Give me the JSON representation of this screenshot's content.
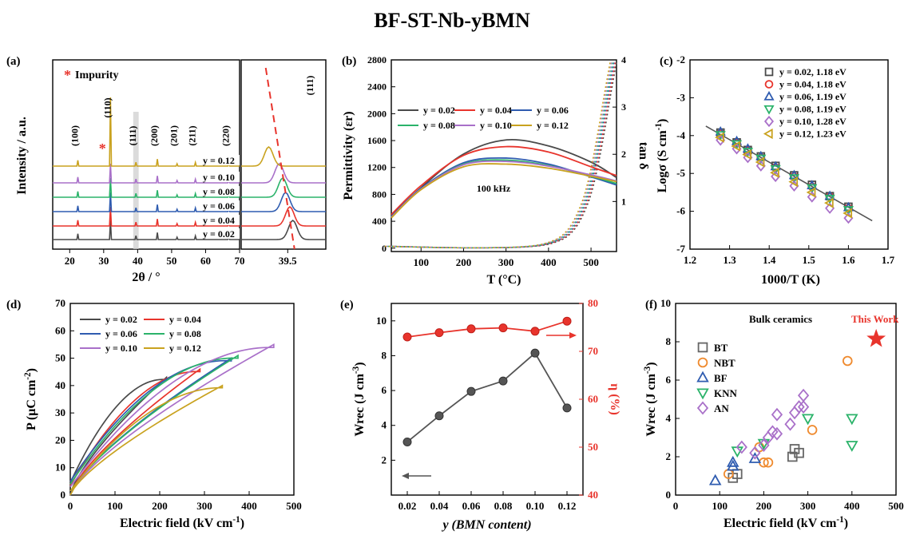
{
  "figure_title": "BF-ST-Nb-yBMN",
  "colors": {
    "y002": "#4a4a4a",
    "y004": "#e8342c",
    "y006": "#2f5cb0",
    "y008": "#2bb36a",
    "y010": "#a970c9",
    "y012": "#c9a21f",
    "bt": "#666666",
    "nbt": "#ef8a2e",
    "bf": "#2f5cb0",
    "knn": "#2bb36a",
    "an": "#a970c9",
    "star": "#e8342c"
  },
  "chart_data": [
    {
      "id": "a",
      "panel_label": "(a)",
      "type": "line",
      "xlabel": "2θ / °",
      "ylabel": "Intensity / a.u.",
      "xlim": [
        15,
        70
      ],
      "xticks": [
        20,
        30,
        40,
        50,
        60,
        70
      ],
      "annotations": {
        "impurity": "Impurity",
        "star": "*"
      },
      "peak_labels": [
        {
          "label": "(100)",
          "x": 22.4
        },
        {
          "label": "(110)",
          "x": 32.0
        },
        {
          "label": "(111)",
          "x": 39.5
        },
        {
          "label": "(200)",
          "x": 45.8
        },
        {
          "label": "(201)",
          "x": 51.6
        },
        {
          "label": "(211)",
          "x": 57.0
        },
        {
          "label": "(220)",
          "x": 66.8
        }
      ],
      "impurity_x": 29.5,
      "highlight_range": [
        38.7,
        40.3
      ],
      "peaks": [
        {
          "x": 22.4,
          "h": 0.45
        },
        {
          "x": 32.0,
          "h": 1.0
        },
        {
          "x": 39.5,
          "h": 0.3
        },
        {
          "x": 45.8,
          "h": 0.55
        },
        {
          "x": 51.6,
          "h": 0.18
        },
        {
          "x": 57.0,
          "h": 0.28
        },
        {
          "x": 66.8,
          "h": 0.22
        }
      ],
      "series": [
        {
          "name": "y = 0.02",
          "color_key": "y002"
        },
        {
          "name": "y = 0.04",
          "color_key": "y004"
        },
        {
          "name": "y = 0.06",
          "color_key": "y006"
        },
        {
          "name": "y = 0.08",
          "color_key": "y008"
        },
        {
          "name": "y = 0.10",
          "color_key": "y010"
        },
        {
          "name": "y = 0.12",
          "color_key": "y012"
        }
      ]
    },
    {
      "id": "a_inset",
      "type": "line",
      "label": "(111)",
      "xtick": "39.5",
      "xlim": [
        38.4,
        40.4
      ],
      "peak_positions": [
        39.62,
        39.55,
        39.45,
        39.38,
        39.3,
        39.05
      ]
    },
    {
      "id": "b",
      "panel_label": "(b)",
      "type": "line",
      "xlabel": "T (°C)",
      "ylabel": "Permittivity (εr)",
      "ylabel2": "tan δ",
      "annotation": "100 kHz",
      "xlim": [
        30,
        560
      ],
      "ylim": [
        -50,
        2800
      ],
      "y2lim": [
        -0.06,
        4
      ],
      "xticks": [
        100,
        200,
        300,
        400,
        500
      ],
      "yticks": [
        0,
        400,
        800,
        1200,
        1600,
        2000,
        2400,
        2800
      ],
      "y2ticks": [
        1,
        2,
        3,
        4
      ],
      "series": [
        {
          "name": "y = 0.02",
          "color_key": "y002",
          "x": [
            30,
            100,
            200,
            300,
            400,
            500,
            560
          ],
          "y": [
            480,
            900,
            1400,
            1610,
            1520,
            1280,
            1050
          ]
        },
        {
          "name": "y = 0.04",
          "color_key": "y004",
          "x": [
            30,
            100,
            200,
            300,
            400,
            500,
            560
          ],
          "y": [
            500,
            930,
            1380,
            1510,
            1430,
            1210,
            1080
          ]
        },
        {
          "name": "y = 0.06",
          "color_key": "y006",
          "x": [
            30,
            100,
            200,
            300,
            400,
            500,
            560
          ],
          "y": [
            470,
            890,
            1270,
            1340,
            1250,
            1060,
            940
          ]
        },
        {
          "name": "y = 0.08",
          "color_key": "y008",
          "x": [
            30,
            100,
            200,
            300,
            400,
            500,
            560
          ],
          "y": [
            460,
            880,
            1250,
            1310,
            1230,
            1070,
            960
          ]
        },
        {
          "name": "y = 0.10",
          "color_key": "y010",
          "x": [
            30,
            100,
            200,
            300,
            400,
            500,
            560
          ],
          "y": [
            460,
            880,
            1240,
            1290,
            1220,
            1090,
            1000
          ]
        },
        {
          "name": "y = 0.12",
          "color_key": "y012",
          "x": [
            30,
            100,
            200,
            300,
            400,
            500,
            560
          ],
          "y": [
            450,
            870,
            1210,
            1250,
            1190,
            1070,
            990
          ]
        }
      ],
      "tan_series": {
        "x": [
          30,
          200,
          350,
          420,
          460,
          490,
          510,
          530,
          545,
          560
        ],
        "y": [
          0.05,
          0.02,
          0.04,
          0.15,
          0.4,
          0.9,
          1.5,
          2.4,
          3.2,
          3.95
        ]
      }
    },
    {
      "id": "c",
      "panel_label": "(c)",
      "type": "scatter",
      "xlabel": "1000/T (K)",
      "ylabel": "Logσ (S cm⁻¹)",
      "xlim": [
        1.2,
        1.7
      ],
      "ylim": [
        -7,
        -2
      ],
      "xticks": [
        1.2,
        1.3,
        1.4,
        1.5,
        1.6,
        1.7
      ],
      "yticks": [
        -7,
        -6,
        -5,
        -4,
        -3,
        -2
      ],
      "fit_line": {
        "x": [
          1.24,
          1.66
        ],
        "y": [
          -3.75,
          -6.25
        ]
      },
      "series": [
        {
          "name": "y = 0.02, 1.18 eV",
          "marker": "square",
          "color_key": "y002",
          "x": [
            1.277,
            1.318,
            1.346,
            1.379,
            1.416,
            1.463,
            1.508,
            1.553,
            1.6
          ],
          "y": [
            -3.92,
            -4.18,
            -4.38,
            -4.55,
            -4.8,
            -5.05,
            -5.3,
            -5.6,
            -5.88
          ]
        },
        {
          "name": "y = 0.04, 1.18 eV",
          "marker": "circle",
          "color_key": "y004",
          "x": [
            1.277,
            1.318,
            1.346,
            1.379,
            1.416,
            1.463,
            1.508,
            1.553,
            1.6
          ],
          "y": [
            -3.95,
            -4.2,
            -4.4,
            -4.58,
            -4.85,
            -5.08,
            -5.35,
            -5.62,
            -5.92
          ]
        },
        {
          "name": "y = 0.06, 1.19 eV",
          "marker": "triangle-up",
          "color_key": "y006",
          "x": [
            1.277,
            1.318,
            1.346,
            1.379,
            1.416,
            1.463,
            1.508,
            1.553,
            1.6
          ],
          "y": [
            -3.9,
            -4.15,
            -4.35,
            -4.55,
            -4.82,
            -5.05,
            -5.32,
            -5.6,
            -5.9
          ]
        },
        {
          "name": "y = 0.08, 1.19 eV",
          "marker": "triangle-down",
          "color_key": "y008",
          "x": [
            1.277,
            1.318,
            1.346,
            1.379,
            1.416,
            1.463,
            1.508,
            1.553,
            1.6
          ],
          "y": [
            -3.98,
            -4.22,
            -4.42,
            -4.6,
            -4.88,
            -5.12,
            -5.38,
            -5.66,
            -5.96
          ]
        },
        {
          "name": "y = 0.10, 1.28 eV",
          "marker": "diamond",
          "color_key": "y010",
          "x": [
            1.277,
            1.318,
            1.346,
            1.379,
            1.416,
            1.463,
            1.508,
            1.553,
            1.6
          ],
          "y": [
            -4.12,
            -4.35,
            -4.58,
            -4.8,
            -5.08,
            -5.33,
            -5.62,
            -5.92,
            -6.18
          ]
        },
        {
          "name": "y = 0.12, 1.23 eV",
          "marker": "triangle-left",
          "color_key": "y012",
          "x": [
            1.277,
            1.318,
            1.346,
            1.379,
            1.416,
            1.463,
            1.508,
            1.553,
            1.6
          ],
          "y": [
            -4.05,
            -4.28,
            -4.5,
            -4.7,
            -4.98,
            -5.22,
            -5.5,
            -5.78,
            -6.05
          ]
        }
      ]
    },
    {
      "id": "d",
      "panel_label": "(d)",
      "type": "line",
      "xlabel": "Electric field (kV cm⁻¹)",
      "ylabel": "P (μC cm⁻²)",
      "xlim": [
        0,
        500
      ],
      "ylim": [
        0,
        70
      ],
      "xticks": [
        0,
        100,
        200,
        300,
        400,
        500
      ],
      "yticks": [
        0,
        10,
        20,
        30,
        40,
        50,
        60,
        70
      ],
      "series": [
        {
          "name": "y = 0.02",
          "color_key": "y002",
          "Emax": 215,
          "Pmax": 43,
          "Pr": 4.5
        },
        {
          "name": "y = 0.04",
          "color_key": "y004",
          "Emax": 290,
          "Pmax": 46,
          "Pr": 3.5
        },
        {
          "name": "y = 0.06",
          "color_key": "y006",
          "Emax": 360,
          "Pmax": 50,
          "Pr": 5.0
        },
        {
          "name": "y = 0.08",
          "color_key": "y008",
          "Emax": 375,
          "Pmax": 51,
          "Pr": 4.0
        },
        {
          "name": "y = 0.10",
          "color_key": "y010",
          "Emax": 455,
          "Pmax": 55,
          "Pr": 3.0
        },
        {
          "name": "y = 0.12",
          "color_key": "y012",
          "Emax": 340,
          "Pmax": 40,
          "Pr": 1.5
        }
      ]
    },
    {
      "id": "e",
      "panel_label": "(e)",
      "type": "line",
      "xlabel": "y (BMN content)",
      "ylabel": "Wrec (J cm⁻³)",
      "ylabel2": "η (%)",
      "categories": [
        "0.02",
        "0.04",
        "0.06",
        "0.08",
        "0.10",
        "0.12"
      ],
      "x": [
        0.02,
        0.04,
        0.06,
        0.08,
        0.1,
        0.12
      ],
      "xlim": [
        0.01,
        0.13
      ],
      "ylim": [
        0,
        11
      ],
      "y2lim": [
        40,
        80
      ],
      "yticks": [
        2,
        4,
        6,
        8,
        10
      ],
      "y2ticks": [
        40,
        50,
        60,
        70,
        80
      ],
      "series": [
        {
          "name": "Wrec",
          "color": "#555555",
          "axis": "left",
          "y": [
            3.05,
            4.55,
            5.95,
            6.55,
            8.15,
            5.0
          ]
        },
        {
          "name": "η",
          "color": "#e8342c",
          "axis": "right",
          "y": [
            73.0,
            73.9,
            74.7,
            74.9,
            74.2,
            76.3
          ]
        }
      ]
    },
    {
      "id": "f",
      "panel_label": "(f)",
      "type": "scatter",
      "xlabel": "Electric field (kV cm⁻¹)",
      "ylabel": "Wrec (J cm⁻³)",
      "annotation": "Bulk ceramics",
      "this_work_label": "This Work",
      "xlim": [
        0,
        500
      ],
      "ylim": [
        0,
        10
      ],
      "xticks": [
        0,
        100,
        200,
        300,
        400,
        500
      ],
      "yticks": [
        0,
        2,
        4,
        6,
        8,
        10
      ],
      "series": [
        {
          "name": "BT",
          "marker": "square",
          "color_key": "bt",
          "x": [
            140,
            130,
            270,
            280,
            265
          ],
          "y": [
            1.1,
            0.9,
            2.4,
            2.2,
            2.0
          ]
        },
        {
          "name": "NBT",
          "marker": "circle",
          "color_key": "nbt",
          "x": [
            120,
            200,
            210,
            310,
            390,
            190
          ],
          "y": [
            1.1,
            1.7,
            1.7,
            3.4,
            7.0,
            2.5
          ]
        },
        {
          "name": "BF",
          "marker": "triangle-up",
          "color_key": "bf",
          "x": [
            90,
            130,
            130,
            180
          ],
          "y": [
            0.75,
            1.5,
            1.7,
            1.9
          ]
        },
        {
          "name": "KNN",
          "marker": "triangle-down",
          "color_key": "knn",
          "x": [
            140,
            200,
            300,
            400,
            400
          ],
          "y": [
            2.3,
            2.7,
            4.0,
            4.0,
            2.6
          ]
        },
        {
          "name": "AN",
          "marker": "diamond",
          "color_key": "an",
          "x": [
            150,
            180,
            200,
            210,
            220,
            230,
            230,
            260,
            270,
            280,
            290,
            290
          ],
          "y": [
            2.5,
            2.2,
            2.6,
            3.0,
            3.3,
            3.2,
            4.2,
            3.7,
            4.3,
            4.6,
            5.2,
            4.6
          ]
        },
        {
          "name": "This Work",
          "marker": "star",
          "color_key": "star",
          "x": [
            455
          ],
          "y": [
            8.15
          ]
        }
      ]
    }
  ]
}
